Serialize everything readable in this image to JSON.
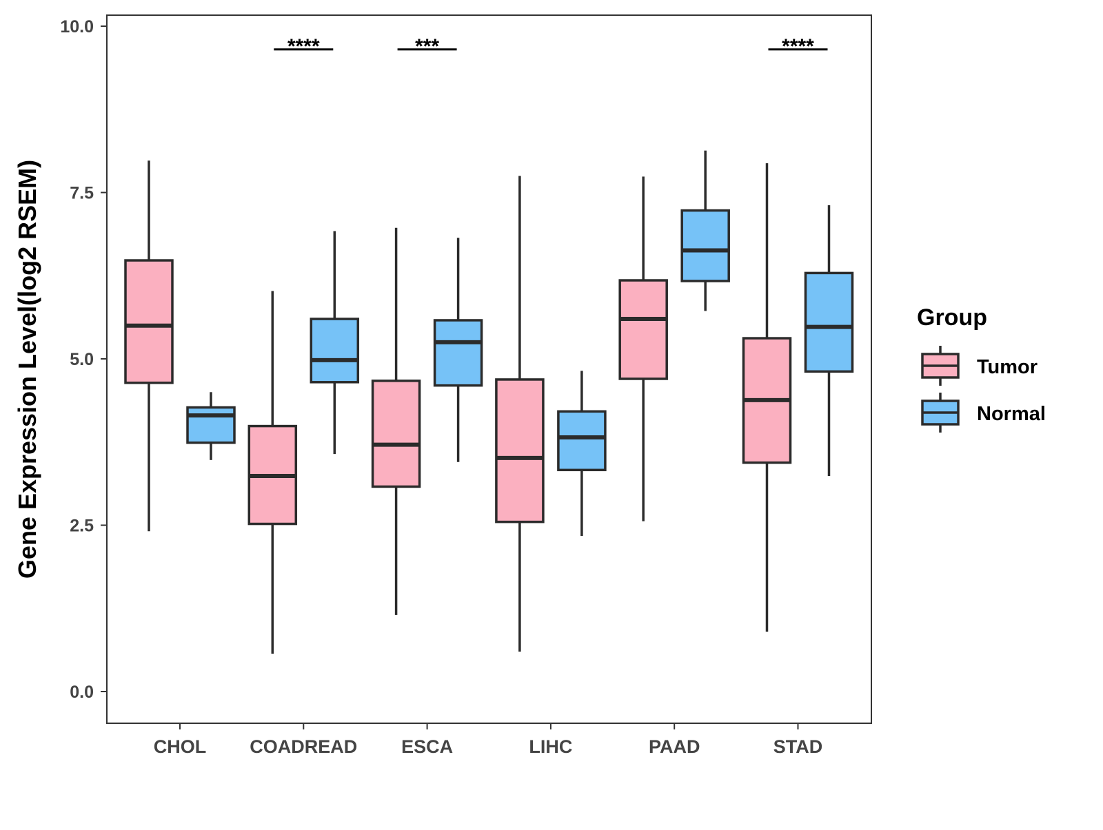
{
  "chart_data": {
    "type": "boxplot",
    "title": "",
    "xlabel": "",
    "ylabel": "Gene Expression Level(log2 RSEM)",
    "ylim": [
      -0.45,
      10.15
    ],
    "yticks": [
      "0.0",
      "2.5",
      "5.0",
      "7.5",
      "10.0"
    ],
    "ytick_values": [
      0,
      2.5,
      5,
      7.5,
      10
    ],
    "categories": [
      "CHOL",
      "COADREAD",
      "ESCA",
      "LIHC",
      "PAAD",
      "STAD"
    ],
    "legend": {
      "title": "Group",
      "placement": "right",
      "entries": [
        "Tumor",
        "Normal"
      ]
    },
    "series": [
      {
        "name": "Tumor",
        "color": "#FBB0C0",
        "boxes": [
          {
            "min": 2.41,
            "q1": 4.64,
            "median": 5.5,
            "q3": 6.48,
            "max": 7.98
          },
          {
            "min": 0.57,
            "q1": 2.52,
            "median": 3.24,
            "q3": 3.99,
            "max": 6.02
          },
          {
            "min": 1.15,
            "q1": 3.08,
            "median": 3.71,
            "q3": 4.67,
            "max": 6.97
          },
          {
            "min": 0.6,
            "q1": 2.55,
            "median": 3.51,
            "q3": 4.69,
            "max": 7.75
          },
          {
            "min": 2.56,
            "q1": 4.7,
            "median": 5.6,
            "q3": 6.18,
            "max": 7.74
          },
          {
            "min": 0.9,
            "q1": 3.44,
            "median": 4.38,
            "q3": 5.31,
            "max": 7.94
          }
        ]
      },
      {
        "name": "Normal",
        "color": "#76C2F7",
        "boxes": [
          {
            "min": 3.48,
            "q1": 3.74,
            "median": 4.15,
            "q3": 4.27,
            "max": 4.5
          },
          {
            "min": 3.57,
            "q1": 4.65,
            "median": 4.98,
            "q3": 5.6,
            "max": 6.92
          },
          {
            "min": 3.45,
            "q1": 4.6,
            "median": 5.25,
            "q3": 5.58,
            "max": 6.82
          },
          {
            "min": 2.34,
            "q1": 3.33,
            "median": 3.82,
            "q3": 4.21,
            "max": 4.82
          },
          {
            "min": 5.72,
            "q1": 6.17,
            "median": 6.63,
            "q3": 7.23,
            "max": 8.13
          },
          {
            "min": 3.24,
            "q1": 4.81,
            "median": 5.48,
            "q3": 6.29,
            "max": 7.31
          }
        ]
      }
    ],
    "annotations": [
      {
        "category": "COADREAD",
        "label": "****",
        "y": 9.65
      },
      {
        "category": "ESCA",
        "label": "***",
        "y": 9.65
      },
      {
        "category": "STAD",
        "label": "****",
        "y": 9.65
      }
    ]
  }
}
